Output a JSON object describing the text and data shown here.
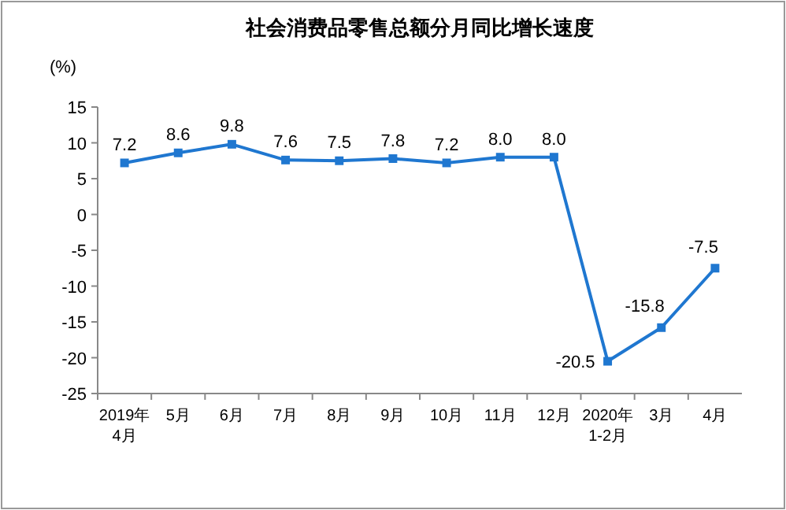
{
  "chart_data": {
    "type": "line",
    "title": "社会消费品零售总额分月同比增长速度",
    "ylabel": "(%)",
    "categories": [
      "2019年\n4月",
      "5月",
      "6月",
      "7月",
      "8月",
      "9月",
      "10月",
      "11月",
      "12月",
      "2020年\n1-2月",
      "3月",
      "4月"
    ],
    "series": [
      {
        "color": "#1f77d0",
        "values": [
          7.2,
          8.6,
          9.8,
          7.6,
          7.5,
          7.8,
          7.2,
          8.0,
          8.0,
          -20.5,
          -15.8,
          -7.5
        ]
      }
    ],
    "value_labels": [
      "7.2",
      "8.6",
      "9.8",
      "7.6",
      "7.5",
      "7.8",
      "7.2",
      "8.0",
      "8.0",
      "-20.5",
      "-15.8",
      "-7.5"
    ],
    "ylim": [
      -25,
      15
    ],
    "yticks": [
      -25,
      -20,
      -15,
      -10,
      -5,
      0,
      5,
      10,
      15
    ],
    "marker": "square",
    "line_style": "solid",
    "grid": false
  }
}
